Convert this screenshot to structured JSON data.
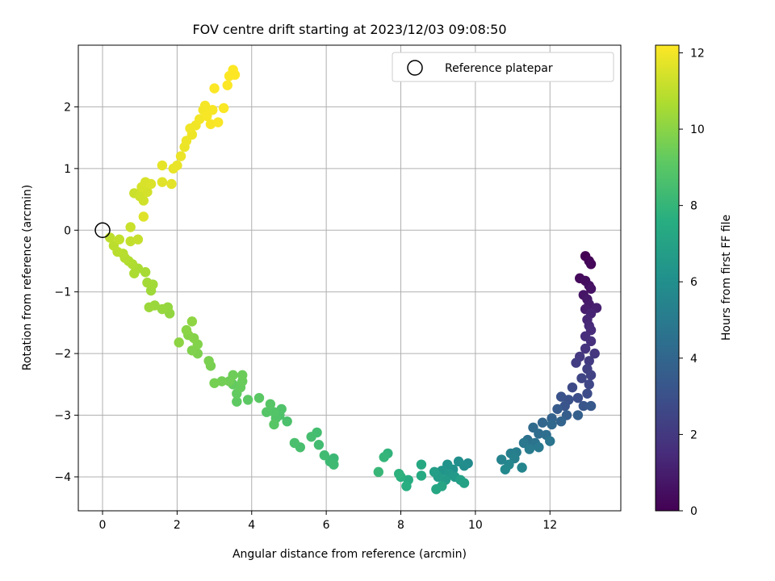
{
  "chart_data": {
    "type": "scatter",
    "title": "FOV centre drift starting at 2023/12/03 09:08:50",
    "xlabel": "Angular distance from reference (arcmin)",
    "ylabel": "Rotation from reference (arcmin)",
    "xlim": [
      -0.65,
      13.9
    ],
    "ylim": [
      -4.55,
      3.0
    ],
    "xticks": [
      0,
      2,
      4,
      6,
      8,
      10,
      12
    ],
    "yticks": [
      -4,
      -3,
      -2,
      -1,
      0,
      1,
      2
    ],
    "grid": true,
    "legend": {
      "position": "top-right",
      "entries": [
        "Reference platepar"
      ]
    },
    "reference_point": {
      "x": 0,
      "y": 0
    },
    "colorbar": {
      "label": "Hours from first FF file",
      "range": [
        0,
        12.2
      ],
      "ticks": [
        0,
        2,
        4,
        6,
        8,
        10,
        12
      ],
      "colormap": "viridis"
    },
    "series": [
      {
        "columns": [
          "x",
          "y",
          "hours"
        ],
        "points": [
          [
            12.95,
            -0.42,
            0.0
          ],
          [
            13.05,
            -0.5,
            0.1
          ],
          [
            13.1,
            -0.55,
            0.2
          ],
          [
            12.8,
            -0.78,
            0.3
          ],
          [
            12.95,
            -0.82,
            0.4
          ],
          [
            13.05,
            -0.9,
            0.5
          ],
          [
            13.1,
            -0.95,
            0.6
          ],
          [
            12.9,
            -1.05,
            0.7
          ],
          [
            13.0,
            -1.12,
            0.8
          ],
          [
            13.05,
            -1.2,
            0.9
          ],
          [
            12.95,
            -1.28,
            1.0
          ],
          [
            13.25,
            -1.26,
            1.1
          ],
          [
            13.1,
            -1.35,
            1.2
          ],
          [
            13.0,
            -1.45,
            1.3
          ],
          [
            13.05,
            -1.55,
            1.4
          ],
          [
            13.1,
            -1.62,
            1.5
          ],
          [
            12.95,
            -1.72,
            1.6
          ],
          [
            13.1,
            -1.8,
            1.7
          ],
          [
            12.95,
            -1.92,
            1.8
          ],
          [
            13.2,
            -2.0,
            1.9
          ],
          [
            12.8,
            -2.05,
            2.0
          ],
          [
            13.05,
            -2.12,
            2.1
          ],
          [
            12.7,
            -2.15,
            2.2
          ],
          [
            13.0,
            -2.25,
            2.3
          ],
          [
            13.1,
            -2.35,
            2.4
          ],
          [
            12.85,
            -2.4,
            2.5
          ],
          [
            13.05,
            -2.5,
            2.6
          ],
          [
            12.6,
            -2.55,
            2.7
          ],
          [
            13.0,
            -2.65,
            2.8
          ],
          [
            12.75,
            -2.72,
            2.9
          ],
          [
            12.5,
            -2.75,
            3.0
          ],
          [
            12.3,
            -2.7,
            3.1
          ],
          [
            12.4,
            -2.85,
            3.2
          ],
          [
            12.9,
            -2.85,
            3.3
          ],
          [
            13.1,
            -2.85,
            3.4
          ],
          [
            12.2,
            -2.9,
            3.5
          ],
          [
            12.45,
            -3.0,
            3.6
          ],
          [
            12.75,
            -3.0,
            3.7
          ],
          [
            12.05,
            -3.05,
            3.8
          ],
          [
            12.3,
            -3.1,
            3.9
          ],
          [
            11.8,
            -3.12,
            4.0
          ],
          [
            12.05,
            -3.15,
            4.1
          ],
          [
            11.55,
            -3.2,
            4.2
          ],
          [
            11.7,
            -3.3,
            4.3
          ],
          [
            11.9,
            -3.32,
            4.4
          ],
          [
            11.4,
            -3.4,
            4.5
          ],
          [
            11.6,
            -3.45,
            4.6
          ],
          [
            12.0,
            -3.42,
            4.7
          ],
          [
            11.3,
            -3.45,
            4.8
          ],
          [
            11.7,
            -3.52,
            4.9
          ],
          [
            11.45,
            -3.55,
            5.0
          ],
          [
            11.1,
            -3.6,
            5.1
          ],
          [
            10.95,
            -3.62,
            5.2
          ],
          [
            11.05,
            -3.7,
            5.3
          ],
          [
            10.7,
            -3.72,
            5.4
          ],
          [
            11.25,
            -3.85,
            5.5
          ],
          [
            10.9,
            -3.8,
            5.6
          ],
          [
            10.8,
            -3.88,
            5.7
          ],
          [
            9.8,
            -3.78,
            5.8
          ],
          [
            9.7,
            -3.82,
            5.9
          ],
          [
            9.55,
            -3.75,
            6.0
          ],
          [
            9.4,
            -3.88,
            6.1
          ],
          [
            9.25,
            -3.8,
            6.2
          ],
          [
            9.1,
            -3.9,
            6.3
          ],
          [
            9.3,
            -3.95,
            6.4
          ],
          [
            9.45,
            -4.0,
            6.5
          ],
          [
            9.2,
            -4.05,
            6.6
          ],
          [
            9.0,
            -4.0,
            6.7
          ],
          [
            8.9,
            -3.92,
            6.8
          ],
          [
            9.6,
            -4.05,
            6.9
          ],
          [
            9.7,
            -4.1,
            7.0
          ],
          [
            9.1,
            -4.15,
            7.1
          ],
          [
            8.95,
            -4.2,
            7.2
          ],
          [
            8.55,
            -3.8,
            7.3
          ],
          [
            8.55,
            -3.98,
            7.4
          ],
          [
            8.2,
            -4.05,
            7.5
          ],
          [
            8.15,
            -4.15,
            7.6
          ],
          [
            8.0,
            -4.0,
            7.7
          ],
          [
            7.95,
            -3.95,
            7.8
          ],
          [
            7.65,
            -3.62,
            7.9
          ],
          [
            7.55,
            -3.68,
            8.0
          ],
          [
            7.4,
            -3.92,
            8.1
          ],
          [
            6.2,
            -3.7,
            8.2
          ],
          [
            6.1,
            -3.75,
            8.25
          ],
          [
            6.2,
            -3.8,
            8.3
          ],
          [
            5.95,
            -3.65,
            8.35
          ],
          [
            5.8,
            -3.48,
            8.4
          ],
          [
            5.75,
            -3.28,
            8.45
          ],
          [
            5.6,
            -3.35,
            8.5
          ],
          [
            5.3,
            -3.52,
            8.55
          ],
          [
            5.15,
            -3.45,
            8.6
          ],
          [
            4.95,
            -3.1,
            8.65
          ],
          [
            4.75,
            -3.0,
            8.7
          ],
          [
            4.8,
            -2.9,
            8.75
          ],
          [
            4.65,
            -3.05,
            8.8
          ],
          [
            4.6,
            -2.95,
            8.85
          ],
          [
            4.4,
            -2.95,
            8.9
          ],
          [
            4.5,
            -2.82,
            8.95
          ],
          [
            4.6,
            -3.15,
            9.0
          ],
          [
            4.2,
            -2.72,
            9.05
          ],
          [
            3.9,
            -2.75,
            9.1
          ],
          [
            3.6,
            -2.78,
            9.15
          ],
          [
            3.6,
            -2.65,
            9.2
          ],
          [
            3.5,
            -2.5,
            9.25
          ],
          [
            3.7,
            -2.55,
            9.3
          ],
          [
            3.75,
            -2.45,
            9.35
          ],
          [
            3.75,
            -2.35,
            9.4
          ],
          [
            3.5,
            -2.35,
            9.45
          ],
          [
            3.4,
            -2.45,
            9.5
          ],
          [
            3.2,
            -2.45,
            9.55
          ],
          [
            3.0,
            -2.48,
            9.6
          ],
          [
            2.9,
            -2.2,
            9.65
          ],
          [
            2.85,
            -2.12,
            9.7
          ],
          [
            2.55,
            -2.0,
            9.75
          ],
          [
            2.4,
            -1.95,
            9.8
          ],
          [
            2.55,
            -1.85,
            9.85
          ],
          [
            2.45,
            -1.75,
            9.9
          ],
          [
            2.3,
            -1.7,
            9.95
          ],
          [
            2.25,
            -1.62,
            10.0
          ],
          [
            2.05,
            -1.82,
            10.05
          ],
          [
            2.4,
            -1.48,
            10.1
          ],
          [
            1.8,
            -1.35,
            10.15
          ],
          [
            1.75,
            -1.25,
            10.2
          ],
          [
            1.6,
            -1.28,
            10.25
          ],
          [
            1.4,
            -1.22,
            10.3
          ],
          [
            1.25,
            -1.25,
            10.35
          ],
          [
            1.3,
            -0.98,
            10.4
          ],
          [
            1.35,
            -0.88,
            10.45
          ],
          [
            1.2,
            -0.85,
            10.5
          ],
          [
            1.15,
            -0.68,
            10.55
          ],
          [
            0.95,
            -0.62,
            10.6
          ],
          [
            0.85,
            -0.7,
            10.65
          ],
          [
            0.8,
            -0.55,
            10.7
          ],
          [
            0.7,
            -0.5,
            10.75
          ],
          [
            0.6,
            -0.45,
            10.8
          ],
          [
            0.55,
            -0.38,
            10.85
          ],
          [
            0.4,
            -0.35,
            10.9
          ],
          [
            0.3,
            -0.25,
            10.95
          ],
          [
            0.2,
            -0.12,
            11.0
          ],
          [
            0.45,
            -0.15,
            11.05
          ],
          [
            0.75,
            -0.18,
            11.1
          ],
          [
            0.95,
            -0.15,
            11.15
          ],
          [
            0.75,
            0.05,
            11.2
          ],
          [
            0.85,
            0.6,
            11.25
          ],
          [
            1.0,
            0.55,
            11.3
          ],
          [
            1.1,
            0.48,
            11.35
          ],
          [
            1.2,
            0.62,
            11.4
          ],
          [
            1.05,
            0.7,
            11.45
          ],
          [
            1.15,
            0.78,
            11.5
          ],
          [
            1.3,
            0.75,
            11.55
          ],
          [
            1.1,
            0.22,
            11.6
          ],
          [
            1.6,
            0.78,
            11.65
          ],
          [
            1.85,
            0.75,
            11.7
          ],
          [
            1.6,
            1.05,
            11.75
          ],
          [
            1.9,
            1.0,
            11.8
          ],
          [
            2.0,
            1.05,
            11.82
          ],
          [
            2.1,
            1.2,
            11.85
          ],
          [
            2.2,
            1.35,
            11.88
          ],
          [
            2.25,
            1.45,
            11.9
          ],
          [
            2.4,
            1.55,
            11.92
          ],
          [
            2.35,
            1.65,
            11.95
          ],
          [
            2.5,
            1.7,
            11.97
          ],
          [
            2.6,
            1.8,
            12.0
          ],
          [
            2.7,
            1.95,
            12.02
          ],
          [
            2.75,
            2.02,
            12.04
          ],
          [
            2.8,
            1.85,
            12.06
          ],
          [
            2.95,
            1.95,
            12.08
          ],
          [
            2.9,
            1.72,
            12.1
          ],
          [
            3.1,
            1.75,
            12.12
          ],
          [
            3.25,
            1.98,
            12.14
          ],
          [
            3.0,
            2.3,
            12.16
          ],
          [
            3.35,
            2.35,
            12.17
          ],
          [
            3.4,
            2.5,
            12.18
          ],
          [
            3.5,
            2.6,
            12.19
          ],
          [
            3.55,
            2.52,
            12.2
          ]
        ]
      }
    ]
  }
}
